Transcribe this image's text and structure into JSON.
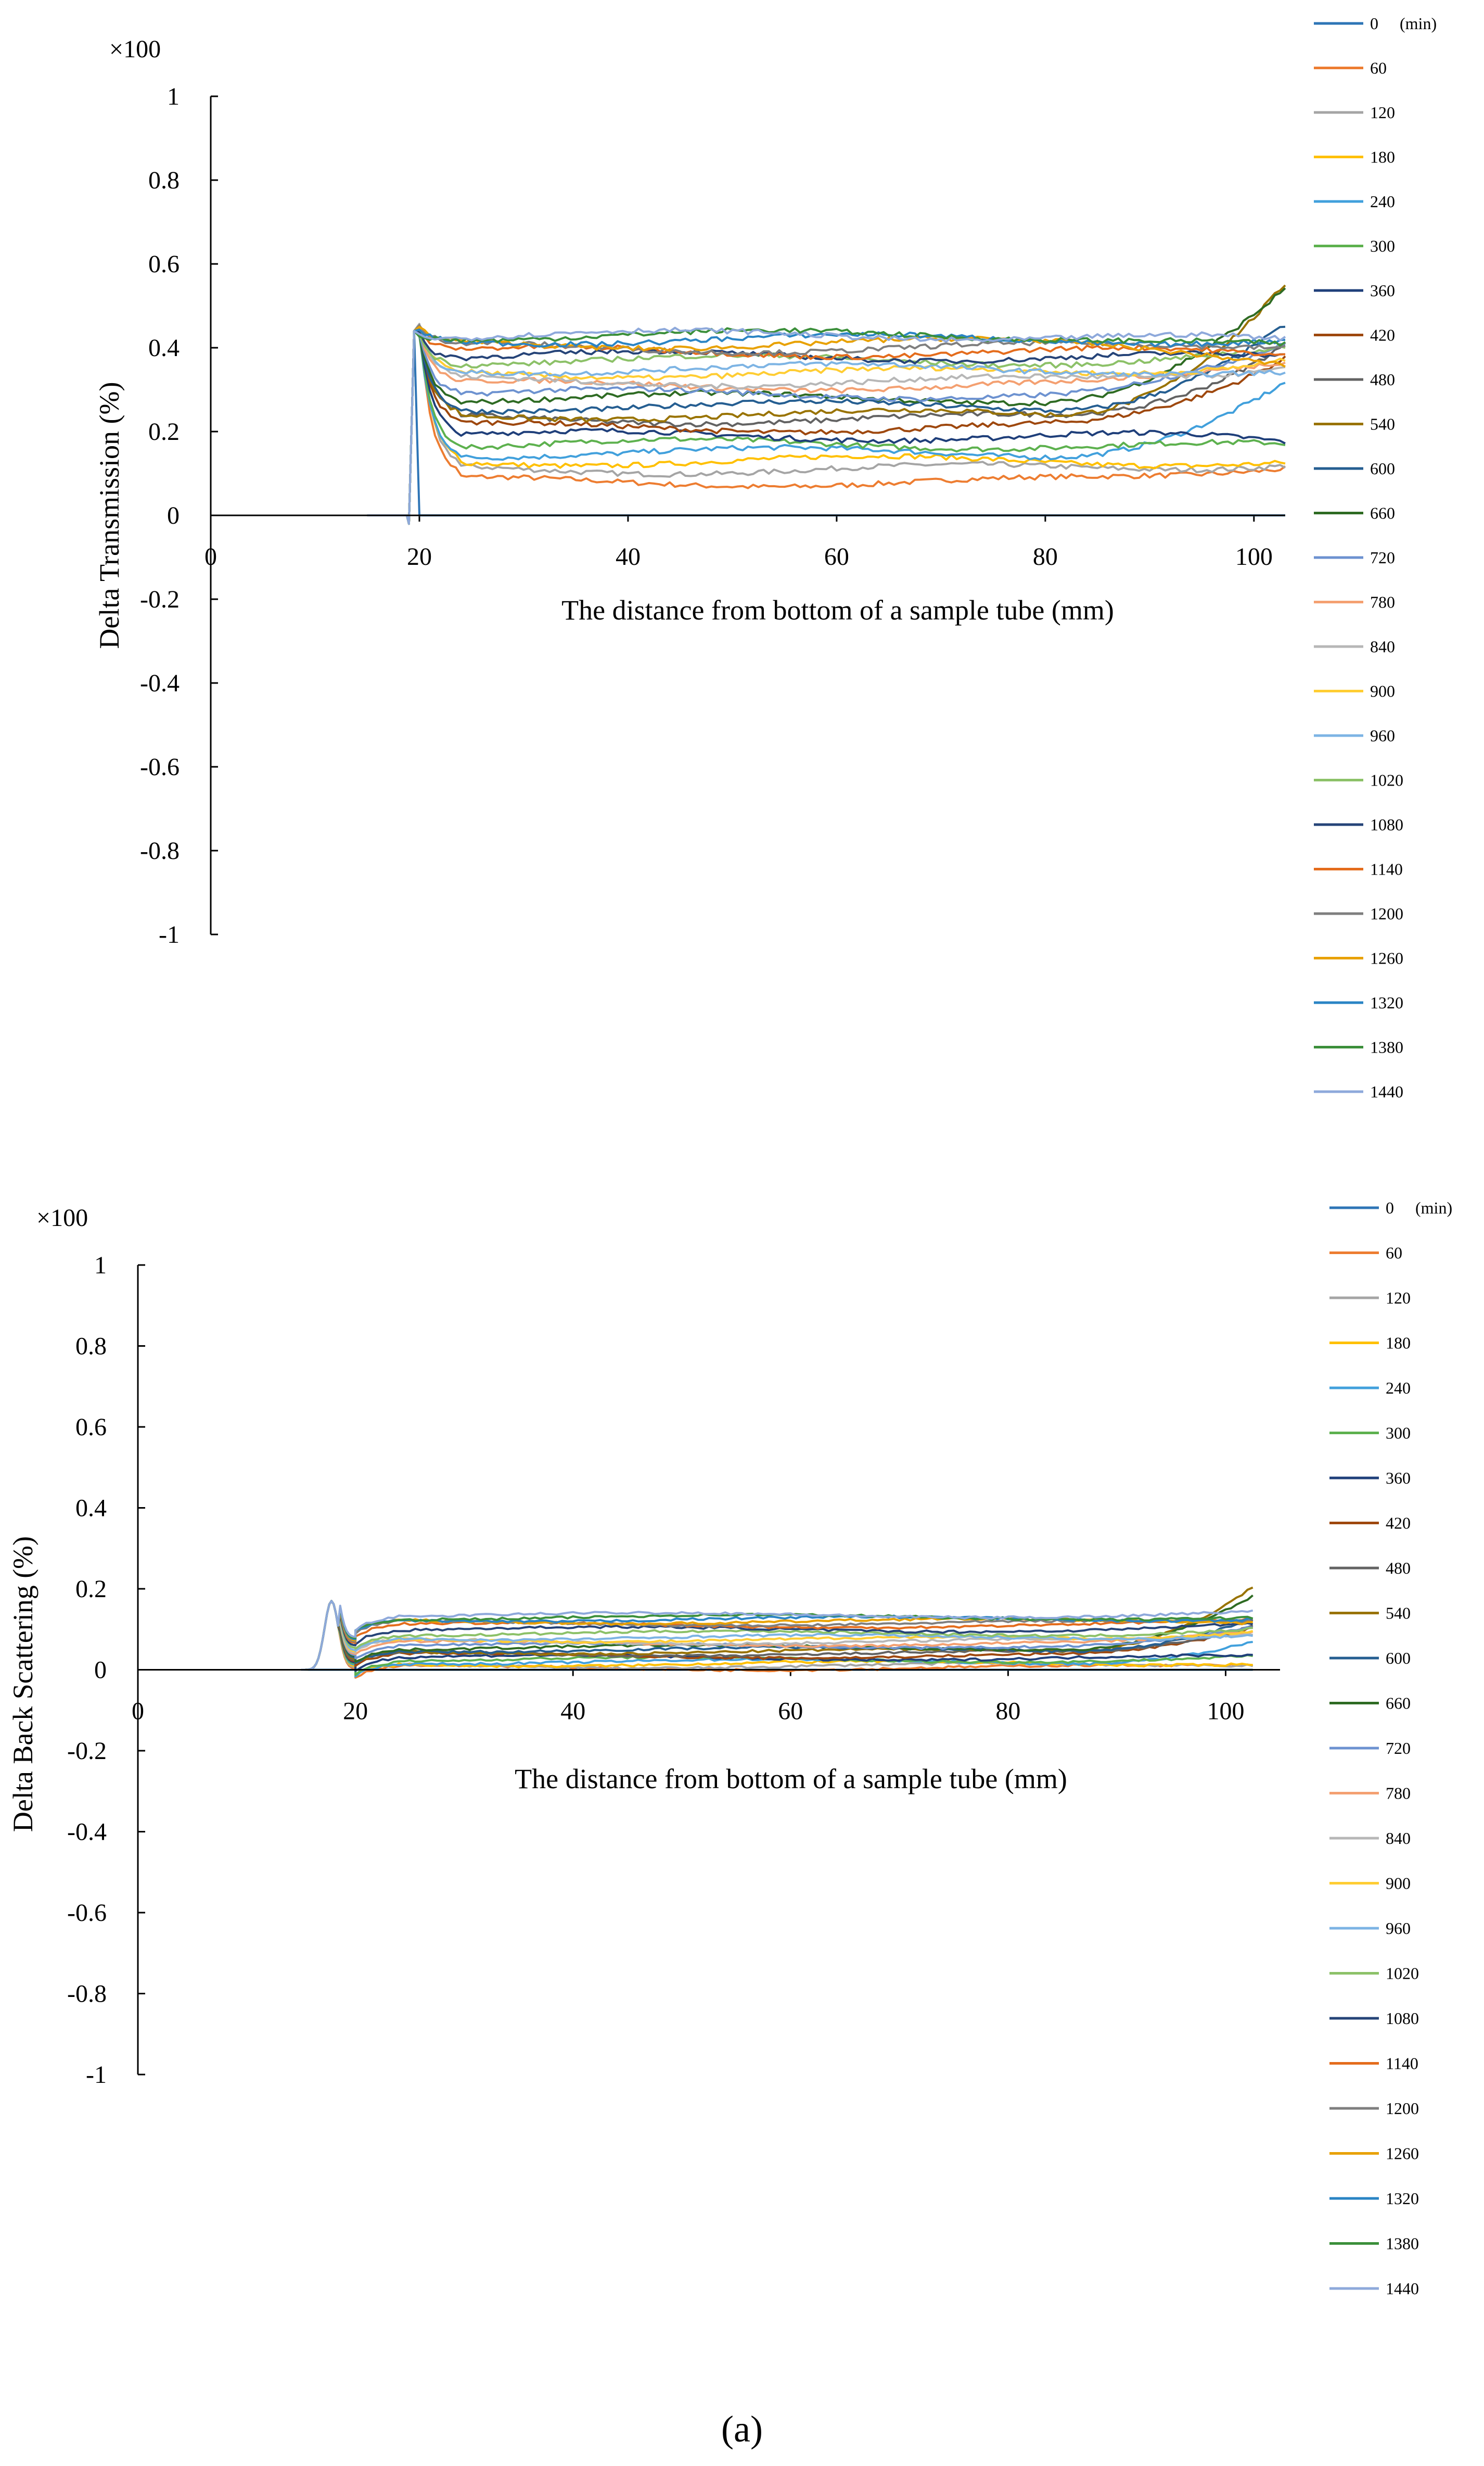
{
  "colors": [
    "#2E75B6",
    "#ED7D31",
    "#A5A5A5",
    "#FFC000",
    "#41A0DC",
    "#5DB14E",
    "#1F3F7A",
    "#9E480E",
    "#636363",
    "#997300",
    "#255E91",
    "#2E6B23",
    "#6D92D0",
    "#F4A071",
    "#B7B7B7",
    "#FFCD33",
    "#7DB4E4",
    "#8CC168",
    "#264478",
    "#E46C1C",
    "#7F7F7F",
    "#E8A100",
    "#2A84C4",
    "#3B8F3A",
    "#8EA9DB"
  ],
  "chart_data": [
    {
      "type": "line",
      "multiplier_label": "×100",
      "ylabel": "Delta Transmission (%)",
      "xlabel": "The distance  from bottom of a sample tube (mm)",
      "xlim": [
        0,
        103
      ],
      "ylim": [
        -1,
        1
      ],
      "x_ticks": [
        "0",
        "20",
        "40",
        "60",
        "80",
        "100"
      ],
      "y_ticks": [
        "1",
        "0.8",
        "0.6",
        "0.4",
        "0.2",
        "0",
        "-0.2",
        "-0.4",
        "-0.6",
        "-0.8",
        "-1"
      ],
      "legend_position": "right",
      "legend_unit": "(min)",
      "start_x": 19.5,
      "series": [
        {
          "name": "0",
          "level": 0.0,
          "end": 0.0
        },
        {
          "name": "60",
          "level": 0.08,
          "end": 0.12
        },
        {
          "name": "120",
          "level": 0.11,
          "end": 0.13
        },
        {
          "name": "180",
          "level": 0.13,
          "end": 0.13
        },
        {
          "name": "240",
          "level": 0.15,
          "end": 0.31
        },
        {
          "name": "300",
          "level": 0.17,
          "end": 0.16
        },
        {
          "name": "360",
          "level": 0.19,
          "end": 0.17
        },
        {
          "name": "420",
          "level": 0.21,
          "end": 0.38
        },
        {
          "name": "480",
          "level": 0.23,
          "end": 0.42
        },
        {
          "name": "540",
          "level": 0.24,
          "end": 0.56
        },
        {
          "name": "600",
          "level": 0.26,
          "end": 0.45
        },
        {
          "name": "660",
          "level": 0.28,
          "end": 0.53
        },
        {
          "name": "720",
          "level": 0.29,
          "end": 0.4
        },
        {
          "name": "780",
          "level": 0.31,
          "end": 0.37
        },
        {
          "name": "840",
          "level": 0.32,
          "end": 0.36
        },
        {
          "name": "900",
          "level": 0.34,
          "end": 0.38
        },
        {
          "name": "960",
          "level": 0.35,
          "end": 0.34
        },
        {
          "name": "1020",
          "level": 0.37,
          "end": 0.39
        },
        {
          "name": "1080",
          "level": 0.38,
          "end": 0.37
        },
        {
          "name": "1140",
          "level": 0.39,
          "end": 0.38
        },
        {
          "name": "1200",
          "level": 0.4,
          "end": 0.41
        },
        {
          "name": "1260",
          "level": 0.41,
          "end": 0.37
        },
        {
          "name": "1320",
          "level": 0.42,
          "end": 0.42
        },
        {
          "name": "1380",
          "level": 0.43,
          "end": 0.4
        },
        {
          "name": "1440",
          "level": 0.43,
          "end": 0.41
        }
      ]
    },
    {
      "type": "line",
      "multiplier_label": "×100",
      "ylabel": "Delta Back Scattering (%)",
      "xlabel": "The distance  from bottom of a sample tube (mm)",
      "xlim": [
        0,
        105
      ],
      "ylim": [
        -1,
        1
      ],
      "x_ticks": [
        "0",
        "20",
        "40",
        "60",
        "80",
        "100"
      ],
      "y_ticks": [
        "1",
        "0.8",
        "0.6",
        "0.4",
        "0.2",
        "0",
        "-0.2",
        "-0.4",
        "-0.6",
        "-0.8",
        "-1"
      ],
      "legend_position": "right",
      "legend_unit": "(min)",
      "peak_x": 17.8,
      "peak_y": 0.17,
      "series": [
        {
          "name": "0",
          "level": 0.0,
          "end": 0.0
        },
        {
          "name": "60",
          "level": 0.005,
          "end": 0.01
        },
        {
          "name": "120",
          "level": 0.01,
          "end": 0.015
        },
        {
          "name": "180",
          "level": 0.015,
          "end": 0.02
        },
        {
          "name": "240",
          "level": 0.02,
          "end": 0.07
        },
        {
          "name": "300",
          "level": 0.025,
          "end": 0.03
        },
        {
          "name": "360",
          "level": 0.03,
          "end": 0.03
        },
        {
          "name": "420",
          "level": 0.035,
          "end": 0.1
        },
        {
          "name": "480",
          "level": 0.04,
          "end": 0.11
        },
        {
          "name": "540",
          "level": 0.045,
          "end": 0.21
        },
        {
          "name": "600",
          "level": 0.05,
          "end": 0.13
        },
        {
          "name": "660",
          "level": 0.055,
          "end": 0.18
        },
        {
          "name": "720",
          "level": 0.06,
          "end": 0.1
        },
        {
          "name": "780",
          "level": 0.065,
          "end": 0.09
        },
        {
          "name": "840",
          "level": 0.07,
          "end": 0.09
        },
        {
          "name": "900",
          "level": 0.075,
          "end": 0.1
        },
        {
          "name": "960",
          "level": 0.08,
          "end": 0.09
        },
        {
          "name": "1020",
          "level": 0.09,
          "end": 0.1
        },
        {
          "name": "1080",
          "level": 0.1,
          "end": 0.11
        },
        {
          "name": "1140",
          "level": 0.11,
          "end": 0.12
        },
        {
          "name": "1200",
          "level": 0.115,
          "end": 0.12
        },
        {
          "name": "1260",
          "level": 0.12,
          "end": 0.12
        },
        {
          "name": "1320",
          "level": 0.125,
          "end": 0.13
        },
        {
          "name": "1380",
          "level": 0.13,
          "end": 0.13
        },
        {
          "name": "1440",
          "level": 0.135,
          "end": 0.14
        }
      ]
    }
  ],
  "caption": "(a)"
}
